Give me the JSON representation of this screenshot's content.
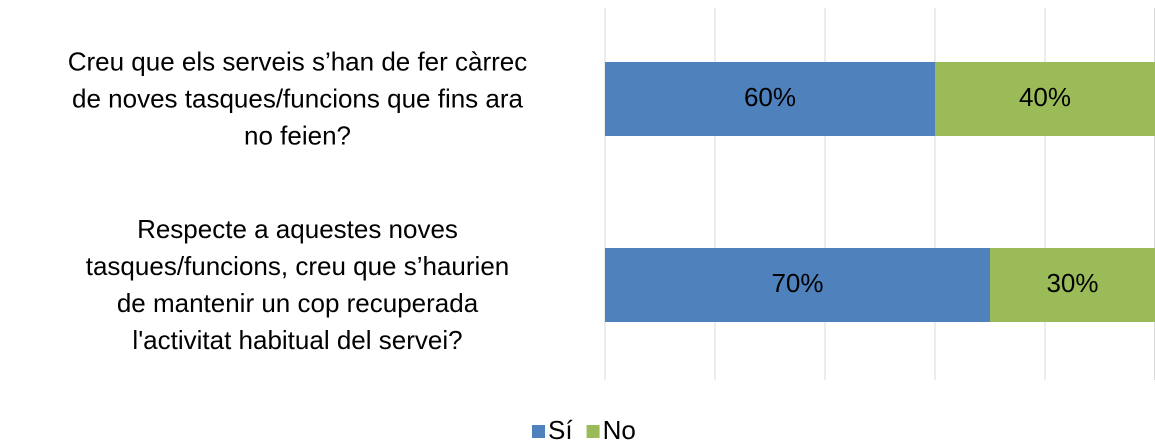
{
  "chart_data": {
    "type": "stacked-bar-horizontal",
    "categories": [
      "Creu que els serveis s’han de fer càrrec\nde noves tasques/funcions que fins ara\nno feien?",
      "Respecte a aquestes noves\ntasques/funcions, creu que s’haurien\nde mantenir un cop recuperada\nl'activitat habitual del servei?"
    ],
    "series": [
      {
        "name": "Sí",
        "color": "#4f81bd",
        "values": [
          60,
          70
        ],
        "value_labels": [
          "60%",
          "70%"
        ]
      },
      {
        "name": "No",
        "color": "#9bbb59",
        "values": [
          40,
          30
        ],
        "value_labels": [
          "40%",
          "30%"
        ]
      }
    ],
    "xlim": [
      0,
      100
    ],
    "xticks": [
      0,
      20,
      40,
      60,
      80,
      100
    ],
    "grid": true,
    "legend": "bottom"
  }
}
